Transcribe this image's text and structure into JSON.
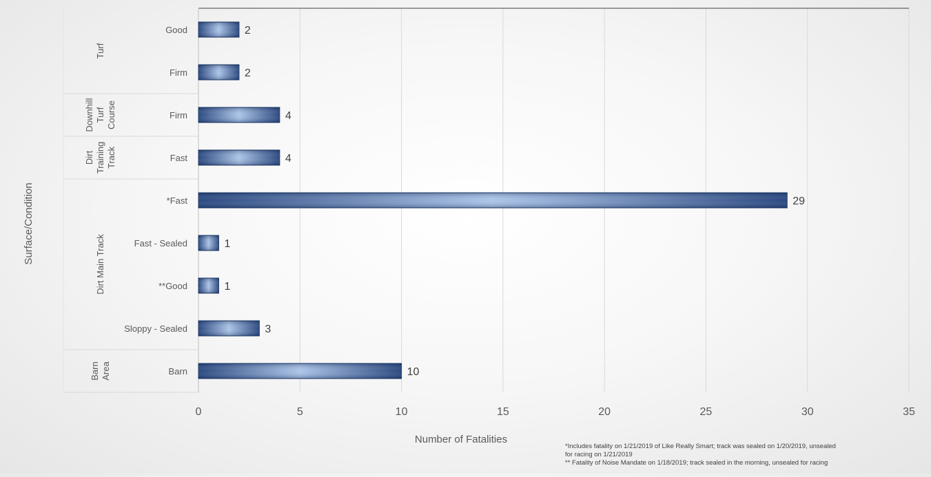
{
  "chart_data": {
    "type": "bar",
    "orientation": "horizontal",
    "xlabel": "Number of Fatalities",
    "ylabel": "Surface/Condition",
    "xlim": [
      0,
      35
    ],
    "xticks": [
      0,
      5,
      10,
      15,
      20,
      25,
      30,
      35
    ],
    "grid": true,
    "legend": "none",
    "bar_color": "#2f5597",
    "groups": [
      {
        "label": "Turf",
        "categories": [
          "Good",
          "Firm"
        ],
        "values": [
          2,
          2
        ]
      },
      {
        "label": "Downhill Turf Course",
        "categories": [
          "Firm"
        ],
        "values": [
          4
        ]
      },
      {
        "label": "Dirt Training Track",
        "categories": [
          "Fast"
        ],
        "values": [
          4
        ]
      },
      {
        "label": "Dirt Main Track",
        "categories": [
          "*Fast",
          "Fast - Sealed",
          "**Good",
          "Sloppy - Sealed"
        ],
        "values": [
          29,
          1,
          1,
          3
        ]
      },
      {
        "label": "Barn Area",
        "categories": [
          "Barn"
        ],
        "values": [
          10
        ]
      }
    ]
  },
  "footnotes": {
    "note1_line1": "*Includes fatality on 1/21/2019 of Like Really Smart; track was sealed on 1/20/2019, unsealed",
    "note1_line2": "for racing on 1/21/2019",
    "note2": "** Fatality of Noise Mandate on 1/18/2019; track sealed in the morning, unsealed for racing"
  }
}
